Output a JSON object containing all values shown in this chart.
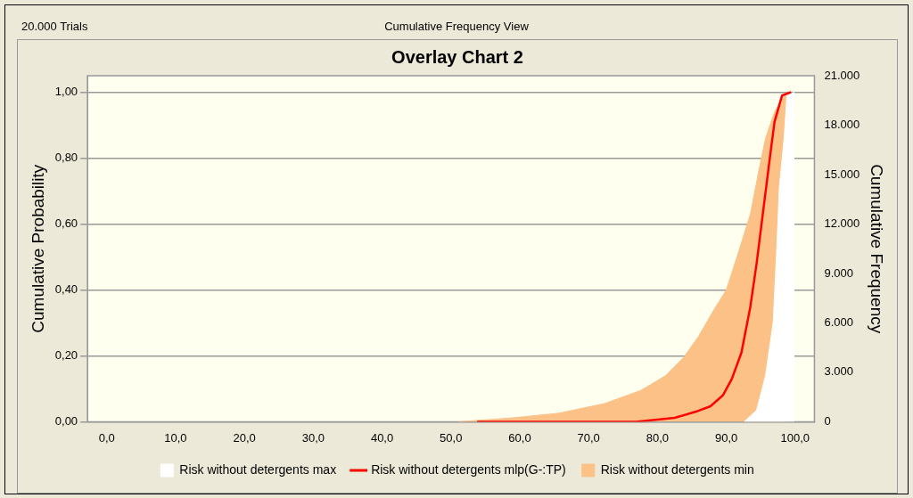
{
  "chart_data": {
    "type": "line",
    "title": "Overlay Chart 2",
    "ylabel": "Cumulative Probability",
    "y2label": "Cumulative Frequency",
    "annotations": [
      "20.000 Trials",
      "Cumulative Frequency View"
    ],
    "xlim": [
      -2.8,
      102.8
    ],
    "xticks": [
      {
        "value": 0,
        "label": "0,0"
      },
      {
        "value": 10,
        "label": "10,0"
      },
      {
        "value": 20,
        "label": "20,0"
      },
      {
        "value": 30,
        "label": "30,0"
      },
      {
        "value": 40,
        "label": "40,0"
      },
      {
        "value": 50,
        "label": "50,0"
      },
      {
        "value": 60,
        "label": "60,0"
      },
      {
        "value": 70,
        "label": "70,0"
      },
      {
        "value": 80,
        "label": "80,0"
      },
      {
        "value": 90,
        "label": "90,0"
      },
      {
        "value": 100,
        "label": "100,0"
      }
    ],
    "ylim": [
      0,
      1.05
    ],
    "yticks": [
      {
        "value": 0,
        "label": "0,00"
      },
      {
        "value": 0.2,
        "label": "0,20"
      },
      {
        "value": 0.4,
        "label": "0,40"
      },
      {
        "value": 0.6,
        "label": "0,60"
      },
      {
        "value": 0.8,
        "label": "0,80"
      },
      {
        "value": 1,
        "label": "1,00"
      }
    ],
    "y2lim": [
      0,
      21000
    ],
    "y2ticks": [
      0,
      {
        "value": 3000,
        "label": "3.000"
      },
      {
        "value": 6000,
        "label": "6.000"
      },
      {
        "value": 9000,
        "label": "9.000"
      },
      {
        "value": 12000,
        "label": "12.000"
      },
      {
        "value": 15000,
        "label": "15.000"
      },
      {
        "value": 18000,
        "label": "18.000"
      },
      {
        "value": 21000,
        "label": "21.000"
      }
    ],
    "grid": "y",
    "legend": "bottom",
    "marker": "none",
    "series": [
      {
        "name": "Risk without detergents max",
        "type": "area",
        "color": "#ffffff",
        "x": [
          92.6,
          94.4,
          95.7,
          96.8,
          97.3,
          97.7,
          98.4,
          98.8,
          99.9
        ],
        "values": [
          0,
          0.035,
          0.14,
          0.3,
          0.51,
          0.71,
          0.86,
          0.99,
          1
        ]
      },
      {
        "name": "Risk without detergents mlp(G-:TP)",
        "type": "line",
        "color": "#ff0000",
        "x": [
          53.8,
          76.9,
          82.5,
          85.5,
          87.7,
          89.5,
          90.8,
          92.2,
          93.5,
          94.4,
          95.3,
          96.2,
          97.0,
          98.1,
          99.4
        ],
        "values": [
          0,
          0,
          0.012,
          0.03,
          0.047,
          0.08,
          0.13,
          0.21,
          0.35,
          0.48,
          0.63,
          0.78,
          0.91,
          0.99,
          1
        ]
      },
      {
        "name": "Risk without detergents min",
        "type": "area",
        "color": "#fbc187",
        "x": [
          51.1,
          59.1,
          65.7,
          72.3,
          77.6,
          81.2,
          83.8,
          86.0,
          88.2,
          90.0,
          91.7,
          93.5,
          94.8,
          95.7,
          97.0,
          98.4,
          98.8
        ],
        "values": [
          0,
          0.012,
          0.026,
          0.055,
          0.095,
          0.14,
          0.195,
          0.26,
          0.34,
          0.4,
          0.51,
          0.63,
          0.77,
          0.86,
          0.94,
          0.99,
          1
        ]
      }
    ]
  }
}
